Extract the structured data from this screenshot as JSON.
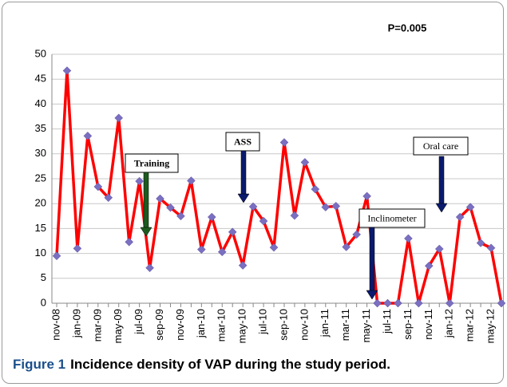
{
  "chart_data": {
    "type": "line",
    "title": "P=0.005",
    "caption_label": "Figure 1",
    "caption": "Incidence density of VAP during the study period.",
    "categories": [
      "nov-08",
      null,
      "jan-09",
      null,
      "mar-09",
      null,
      "may-09",
      null,
      "jul-09",
      null,
      "sep-09",
      null,
      "nov-09",
      null,
      "jan-10",
      null,
      "mar-10",
      null,
      "may-10",
      null,
      "jul-10",
      null,
      "sep-10",
      null,
      "nov-10",
      null,
      "jan-11",
      null,
      "mar-11",
      null,
      "may-11",
      null,
      "jul-11",
      null,
      "sep-11",
      null,
      "nov-11",
      null,
      "jan-12",
      null,
      "mar-12",
      null,
      "may-12",
      null
    ],
    "series": [
      {
        "color": "#ff0000",
        "marker_color": "#7a6fc0",
        "values": [
          9.5,
          46.7,
          11,
          33.6,
          23.4,
          21.2,
          37.2,
          12.3,
          24.5,
          7.1,
          21,
          19.2,
          17.5,
          24.6,
          10.8,
          17.3,
          10.3,
          14.3,
          7.6,
          19.4,
          16.5,
          11.2,
          32.3,
          17.6,
          28.3,
          22.9,
          19.3,
          19.5,
          11.3,
          13.8,
          21.5,
          0,
          0,
          0,
          13,
          0,
          7.5,
          10.9,
          0,
          17.3,
          19.3,
          12.1,
          11.1,
          0
        ]
      }
    ],
    "ylim": [
      0,
      50
    ],
    "yticks": [
      0,
      5,
      10,
      15,
      20,
      25,
      30,
      35,
      40,
      45,
      50
    ],
    "grid": true,
    "annotations": [
      {
        "text": "Training",
        "color": "#1e5a1e"
      },
      {
        "text": "ASS",
        "color": "#0a1a6e"
      },
      {
        "text": "Inclinometer",
        "color": "#0a1a6e"
      },
      {
        "text": "Oral care",
        "color": "#0a1a6e"
      }
    ]
  }
}
